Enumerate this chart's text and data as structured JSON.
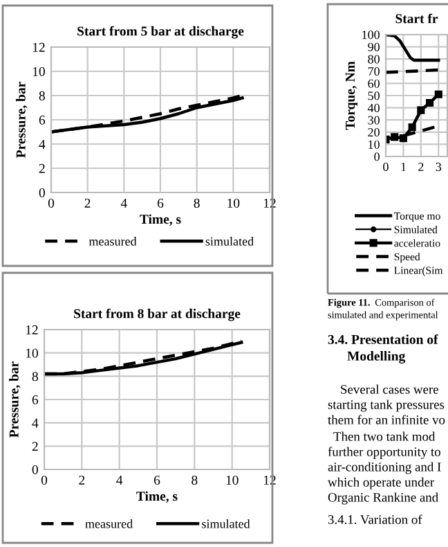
{
  "chart_data": [
    {
      "type": "line",
      "title": "Start from 5 bar at discharge",
      "xlabel": "Time, s",
      "ylabel": "Pressure, bar",
      "xlim": [
        0,
        12
      ],
      "ylim": [
        0,
        12
      ],
      "xticks": [
        0,
        2,
        4,
        6,
        8,
        10,
        12
      ],
      "yticks": [
        0,
        2,
        4,
        6,
        8,
        10,
        12
      ],
      "grid": true,
      "legend": "bottom",
      "marker": "none",
      "series": [
        {
          "name": "measured",
          "color": "#000000",
          "line_style": "dashed",
          "x": [
            0,
            2,
            3.6,
            4,
            5,
            6,
            7,
            8,
            9,
            10,
            10.5
          ],
          "values": [
            5.0,
            5.4,
            5.8,
            5.9,
            6.2,
            6.5,
            6.9,
            7.2,
            7.5,
            7.8,
            8.0
          ]
        },
        {
          "name": "simulated",
          "color": "#000000",
          "line_style": "solid",
          "x": [
            0,
            2,
            4,
            5,
            6,
            7,
            8,
            9,
            10,
            10.5
          ],
          "values": [
            5.0,
            5.4,
            5.6,
            5.8,
            6.1,
            6.5,
            7.0,
            7.3,
            7.6,
            7.8
          ]
        }
      ]
    },
    {
      "type": "line",
      "title": "Start from 8 bar at discharge",
      "xlabel": "Time, s",
      "ylabel": "Pressure, bar",
      "xlim": [
        0,
        12
      ],
      "ylim": [
        0,
        12
      ],
      "xticks": [
        0,
        2,
        4,
        6,
        8,
        10,
        12
      ],
      "yticks": [
        0,
        2,
        4,
        6,
        8,
        10,
        12
      ],
      "grid": true,
      "legend": "bottom",
      "marker": "none",
      "series": [
        {
          "name": "measured",
          "color": "#000000",
          "line_style": "dashed",
          "x": [
            0,
            1,
            2,
            3,
            4,
            5,
            6,
            7,
            8,
            9,
            10,
            10.5
          ],
          "values": [
            8.2,
            8.2,
            8.4,
            8.6,
            8.9,
            9.2,
            9.5,
            9.8,
            10.1,
            10.4,
            10.8,
            11.0
          ]
        },
        {
          "name": "simulated",
          "color": "#000000",
          "line_style": "solid",
          "x": [
            0,
            1,
            2,
            3,
            4,
            5,
            6,
            7,
            8,
            9,
            10,
            10.5
          ],
          "values": [
            8.2,
            8.2,
            8.3,
            8.5,
            8.7,
            8.9,
            9.2,
            9.5,
            9.9,
            10.3,
            10.7,
            10.9
          ]
        }
      ]
    },
    {
      "type": "line",
      "title": "Start fr",
      "ylabel": "Torque, Nm",
      "xlim": [
        0,
        3.5
      ],
      "ylim": [
        0,
        100
      ],
      "xticks": [
        0,
        1,
        2,
        3
      ],
      "yticks": [
        0,
        10,
        20,
        30,
        40,
        50,
        60,
        70,
        80,
        90,
        100
      ],
      "grid": true,
      "legend": "bottom",
      "series": [
        {
          "name": "Torque mo",
          "color": "#000000",
          "line_style": "solid",
          "marker": "none",
          "x": [
            0,
            0.5,
            0.8,
            1.1,
            1.4,
            1.6,
            2,
            2.5,
            3
          ],
          "values": [
            100,
            99,
            95,
            88,
            81,
            79,
            79,
            79,
            79
          ]
        },
        {
          "name": "Simulated",
          "color": "#000000",
          "line_style": "solid",
          "marker": "circle"
        },
        {
          "name": "acceleratio",
          "color": "#000000",
          "line_style": "solid",
          "marker": "square",
          "x": [
            0,
            0.5,
            1,
            1.5,
            2,
            2.5,
            3
          ],
          "values": [
            14,
            16,
            15,
            24,
            38,
            44,
            51
          ]
        },
        {
          "name": "Speed",
          "color": "#000000",
          "line_style": "dashed",
          "marker": "none",
          "x": [
            1,
            2,
            3
          ],
          "values": [
            17,
            21,
            25
          ]
        },
        {
          "name": "Linear(Sim",
          "color": "#000000",
          "line_style": "dashed",
          "marker": "none",
          "x": [
            0,
            3
          ],
          "values": [
            69,
            71
          ]
        }
      ]
    },
    {
      "type": "other",
      "annotations": [
        "Figure 11. Comparison of",
        "simulated and experimental",
        "3.4. Presentation of",
        "Modelling",
        "Several cases were",
        "starting tank pressures",
        "them for an infinite vo",
        "Then two tank mod",
        "further opportunity to",
        "air-conditioning and I",
        "which operate under",
        "Organic Rankine and",
        "3.4.1. Variation of"
      ]
    }
  ]
}
